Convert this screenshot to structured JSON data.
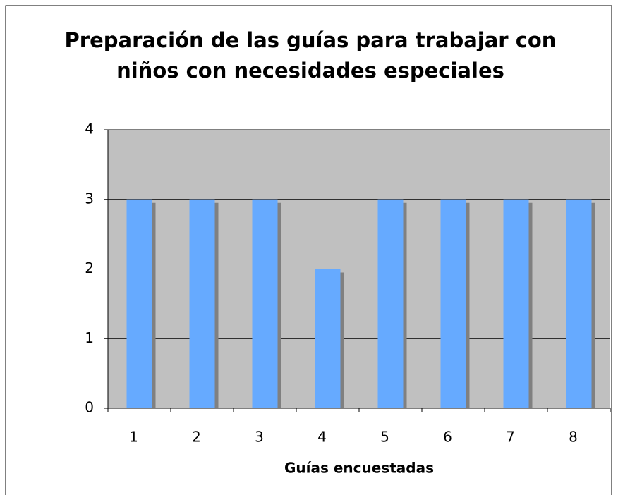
{
  "chart_data": {
    "type": "bar",
    "title": "Preparación de las guías para trabajar con niños con necesidades especiales",
    "x_label": "Guías encuestadas",
    "categories": [
      "1",
      "2",
      "3",
      "4",
      "5",
      "6",
      "7",
      "8"
    ],
    "values": [
      3,
      3,
      3,
      2,
      3,
      3,
      3,
      3
    ],
    "color": "#66aaff",
    "plot_background": "#c0c0c0",
    "ylim": [
      0,
      4
    ],
    "yticks": [
      0,
      1,
      2,
      3,
      4
    ],
    "grid": true
  }
}
